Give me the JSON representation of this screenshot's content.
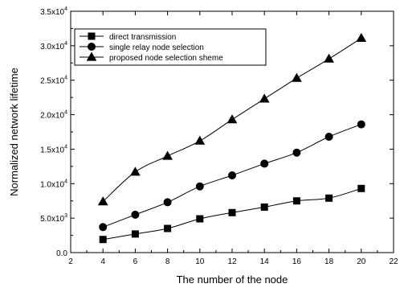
{
  "chart_data": {
    "type": "line",
    "xlabel": "The number of the node",
    "ylabel": "Normalized network lifetime",
    "xlim": [
      2,
      22
    ],
    "ylim": [
      0,
      35000
    ],
    "x_ticks": [
      2,
      4,
      6,
      8,
      10,
      12,
      14,
      16,
      18,
      20,
      22
    ],
    "x_tick_labels": [
      "2",
      "4",
      "6",
      "8",
      "10",
      "12",
      "14",
      "16",
      "18",
      "20",
      "22"
    ],
    "y_ticks": [
      {
        "value": 0,
        "mant": "0.0",
        "exp": ""
      },
      {
        "value": 5000,
        "mant": "5.0x10",
        "exp": "3"
      },
      {
        "value": 10000,
        "mant": "1.0x10",
        "exp": "4"
      },
      {
        "value": 15000,
        "mant": "1.5x10",
        "exp": "4"
      },
      {
        "value": 20000,
        "mant": "2.0x10",
        "exp": "4"
      },
      {
        "value": 25000,
        "mant": "2.5x10",
        "exp": "4"
      },
      {
        "value": 30000,
        "mant": "3.0x10",
        "exp": "4"
      },
      {
        "value": 35000,
        "mant": "3.5x10",
        "exp": "4"
      }
    ],
    "grid": false,
    "legend_position": "top-left",
    "x": [
      4,
      6,
      8,
      10,
      12,
      14,
      16,
      18,
      20
    ],
    "series": [
      {
        "name": "direct transmission",
        "marker": "square",
        "values": [
          1900,
          2700,
          3500,
          4900,
          5800,
          6600,
          7500,
          7900,
          9300
        ]
      },
      {
        "name": "single relay node selection",
        "marker": "circle",
        "values": [
          3700,
          5500,
          7300,
          9600,
          11200,
          12900,
          14500,
          16800,
          18600
        ]
      },
      {
        "name": "proposed node selection sheme",
        "marker": "triangle",
        "values": [
          7400,
          11700,
          14000,
          16200,
          19300,
          22300,
          25300,
          28100,
          31100
        ]
      }
    ]
  }
}
